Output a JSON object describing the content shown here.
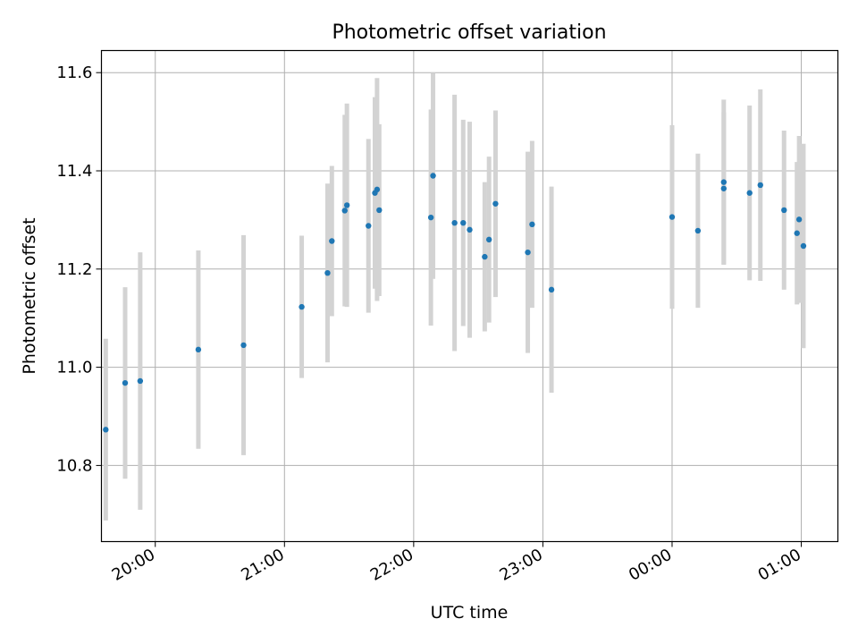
{
  "chart_data": {
    "type": "scatter",
    "title": "Photometric offset variation",
    "xlabel": "UTC time",
    "ylabel": "Photometric offset",
    "x_tick_labels": [
      "20:00",
      "21:00",
      "22:00",
      "23:00",
      "00:00",
      "01:00"
    ],
    "y_tick_labels": [
      "10.8",
      "11.0",
      "11.2",
      "11.4",
      "11.6"
    ],
    "xlim": [
      "19:35",
      "01:17"
    ],
    "ylim": [
      10.645,
      11.645
    ],
    "grid": true,
    "marker_color": "#1f77b4",
    "errorbar_color": "#d3d3d3",
    "points": [
      {
        "x": "19:37",
        "y": 10.873,
        "err": 0.185
      },
      {
        "x": "19:46",
        "y": 10.968,
        "err": 0.195
      },
      {
        "x": "19:53",
        "y": 10.972,
        "err": 0.262
      },
      {
        "x": "20:20",
        "y": 11.036,
        "err": 0.202
      },
      {
        "x": "20:41",
        "y": 11.045,
        "err": 0.224
      },
      {
        "x": "21:08",
        "y": 11.123,
        "err": 0.145
      },
      {
        "x": "21:20",
        "y": 11.192,
        "err": 0.182
      },
      {
        "x": "21:22",
        "y": 11.257,
        "err": 0.153
      },
      {
        "x": "21:28",
        "y": 11.319,
        "err": 0.195
      },
      {
        "x": "21:29",
        "y": 11.33,
        "err": 0.207
      },
      {
        "x": "21:39",
        "y": 11.288,
        "err": 0.177
      },
      {
        "x": "21:42",
        "y": 11.355,
        "err": 0.195
      },
      {
        "x": "21:43",
        "y": 11.362,
        "err": 0.227
      },
      {
        "x": "21:44",
        "y": 11.32,
        "err": 0.175
      },
      {
        "x": "22:08",
        "y": 11.305,
        "err": 0.22
      },
      {
        "x": "22:09",
        "y": 11.39,
        "err": 0.21
      },
      {
        "x": "22:19",
        "y": 11.294,
        "err": 0.261
      },
      {
        "x": "22:23",
        "y": 11.294,
        "err": 0.21
      },
      {
        "x": "22:26",
        "y": 11.28,
        "err": 0.22
      },
      {
        "x": "22:33",
        "y": 11.225,
        "err": 0.152
      },
      {
        "x": "22:35",
        "y": 11.26,
        "err": 0.169
      },
      {
        "x": "22:38",
        "y": 11.333,
        "err": 0.19
      },
      {
        "x": "22:53",
        "y": 11.234,
        "err": 0.205
      },
      {
        "x": "22:55",
        "y": 11.291,
        "err": 0.17
      },
      {
        "x": "23:04",
        "y": 11.158,
        "err": 0.21
      },
      {
        "x": "00:00",
        "y": 11.306,
        "err": 0.187
      },
      {
        "x": "00:12",
        "y": 11.278,
        "err": 0.157
      },
      {
        "x": "00:24",
        "y": 11.377,
        "err": 0.168
      },
      {
        "x": "00:24",
        "y": 11.364,
        "err": 0.155
      },
      {
        "x": "00:36",
        "y": 11.355,
        "err": 0.178
      },
      {
        "x": "00:41",
        "y": 11.371,
        "err": 0.195
      },
      {
        "x": "00:52",
        "y": 11.32,
        "err": 0.162
      },
      {
        "x": "00:58",
        "y": 11.273,
        "err": 0.145
      },
      {
        "x": "00:59",
        "y": 11.301,
        "err": 0.17
      },
      {
        "x": "01:01",
        "y": 11.247,
        "err": 0.208
      }
    ]
  }
}
